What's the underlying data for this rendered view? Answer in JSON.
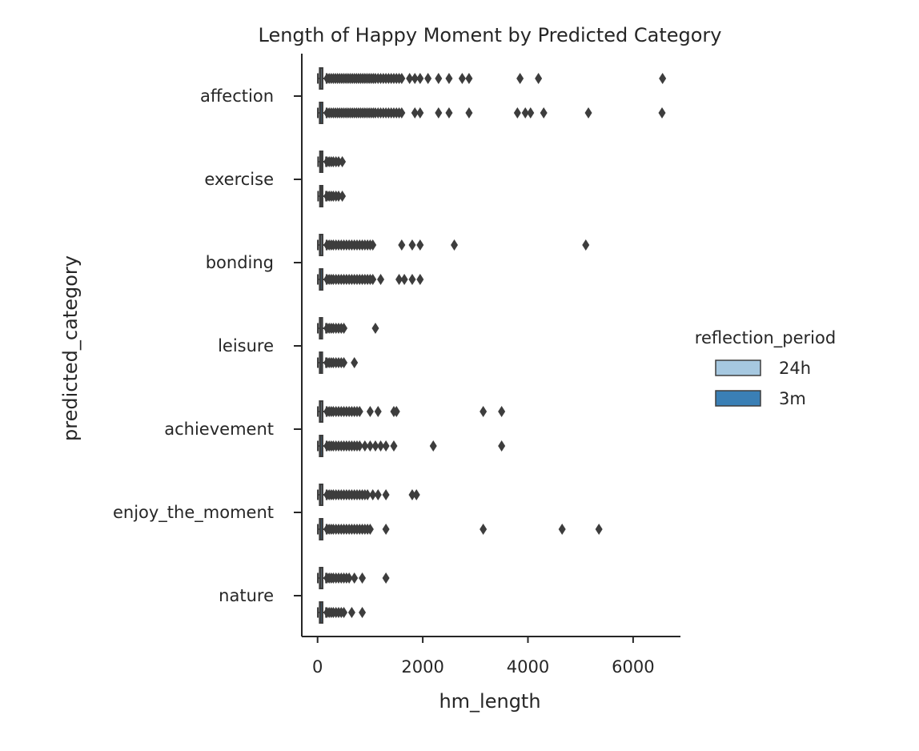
{
  "chart_data": {
    "type": "boxplot",
    "orientation": "horizontal",
    "title": "Length of Happy Moment by Predicted Category",
    "xlabel": "hm_length",
    "ylabel": "predicted_category",
    "xlim": [
      -300,
      6900
    ],
    "xticks": [
      0,
      2000,
      4000,
      6000
    ],
    "grid": false,
    "categories": [
      "affection",
      "exercise",
      "bonding",
      "leisure",
      "achievement",
      "enjoy_the_moment",
      "nature"
    ],
    "legend": {
      "title": "reflection_period",
      "placement": "center-right",
      "entries": [
        {
          "label": "24h",
          "color": "#a6c8e0"
        },
        {
          "label": "3m",
          "color": "#3a7fb5"
        }
      ]
    },
    "series": [
      {
        "name": "24h",
        "color": "#a6c8e0",
        "boxes": [
          {
            "category": "affection",
            "q1": 40,
            "median": 60,
            "q3": 95,
            "whisker_low": 5,
            "whisker_high": 170,
            "outliers": [
              180,
              220,
              260,
              300,
              340,
              380,
              420,
              460,
              500,
              540,
              580,
              620,
              660,
              700,
              740,
              780,
              820,
              860,
              900,
              940,
              980,
              1020,
              1060,
              1100,
              1150,
              1200,
              1250,
              1300,
              1350,
              1400,
              1450,
              1500,
              1550,
              1600,
              1750,
              1850,
              1950,
              2100,
              2300,
              2500,
              2750,
              2880,
              3850,
              4200,
              6560
            ]
          },
          {
            "category": "exercise",
            "q1": 45,
            "median": 65,
            "q3": 95,
            "whisker_low": 10,
            "whisker_high": 160,
            "outliers": [
              180,
              220,
              260,
              300,
              350,
              400,
              470
            ]
          },
          {
            "category": "bonding",
            "q1": 40,
            "median": 60,
            "q3": 95,
            "whisker_low": 5,
            "whisker_high": 170,
            "outliers": [
              180,
              220,
              260,
              300,
              350,
              400,
              450,
              500,
              550,
              600,
              650,
              700,
              750,
              800,
              850,
              900,
              950,
              1000,
              1050,
              1600,
              1800,
              1950,
              2600,
              5100
            ]
          },
          {
            "category": "leisure",
            "q1": 40,
            "median": 60,
            "q3": 90,
            "whisker_low": 5,
            "whisker_high": 160,
            "outliers": [
              180,
              220,
              260,
              300,
              350,
              400,
              450,
              500,
              1100
            ]
          },
          {
            "category": "achievement",
            "q1": 40,
            "median": 60,
            "q3": 95,
            "whisker_low": 5,
            "whisker_high": 170,
            "outliers": [
              180,
              220,
              260,
              300,
              350,
              400,
              450,
              500,
              550,
              600,
              650,
              700,
              750,
              800,
              1000,
              1150,
              1450,
              1500,
              3150,
              3500
            ]
          },
          {
            "category": "enjoy_the_moment",
            "q1": 40,
            "median": 60,
            "q3": 95,
            "whisker_low": 5,
            "whisker_high": 170,
            "outliers": [
              180,
              220,
              260,
              300,
              350,
              400,
              450,
              500,
              550,
              600,
              650,
              700,
              750,
              800,
              850,
              900,
              950,
              1050,
              1150,
              1300,
              1800,
              1880
            ]
          },
          {
            "category": "nature",
            "q1": 40,
            "median": 60,
            "q3": 95,
            "whisker_low": 5,
            "whisker_high": 160,
            "outliers": [
              180,
              220,
              260,
              300,
              350,
              400,
              450,
              500,
              550,
              600,
              700,
              850,
              1300
            ]
          }
        ]
      },
      {
        "name": "3m",
        "color": "#3a7fb5",
        "boxes": [
          {
            "category": "affection",
            "q1": 40,
            "median": 60,
            "q3": 95,
            "whisker_low": 5,
            "whisker_high": 170,
            "outliers": [
              180,
              220,
              260,
              300,
              340,
              380,
              420,
              460,
              500,
              540,
              580,
              620,
              660,
              700,
              740,
              780,
              820,
              860,
              900,
              940,
              980,
              1020,
              1060,
              1100,
              1150,
              1200,
              1250,
              1300,
              1350,
              1400,
              1450,
              1500,
              1550,
              1600,
              1850,
              1950,
              2300,
              2500,
              2880,
              3800,
              3950,
              4050,
              4300,
              5150,
              6550
            ]
          },
          {
            "category": "exercise",
            "q1": 45,
            "median": 65,
            "q3": 95,
            "whisker_low": 10,
            "whisker_high": 160,
            "outliers": [
              180,
              220,
              260,
              300,
              350,
              400,
              470
            ]
          },
          {
            "category": "bonding",
            "q1": 40,
            "median": 60,
            "q3": 95,
            "whisker_low": 5,
            "whisker_high": 170,
            "outliers": [
              180,
              220,
              260,
              300,
              350,
              400,
              450,
              500,
              550,
              600,
              650,
              700,
              750,
              800,
              850,
              900,
              950,
              1000,
              1050,
              1200,
              1550,
              1650,
              1800,
              1950
            ]
          },
          {
            "category": "leisure",
            "q1": 40,
            "median": 60,
            "q3": 90,
            "whisker_low": 5,
            "whisker_high": 160,
            "outliers": [
              180,
              220,
              260,
              300,
              350,
              400,
              450,
              500,
              700
            ]
          },
          {
            "category": "achievement",
            "q1": 40,
            "median": 60,
            "q3": 95,
            "whisker_low": 5,
            "whisker_high": 170,
            "outliers": [
              180,
              220,
              260,
              300,
              350,
              400,
              450,
              500,
              550,
              600,
              650,
              700,
              750,
              800,
              900,
              1000,
              1100,
              1200,
              1300,
              1450,
              2200,
              3500
            ]
          },
          {
            "category": "enjoy_the_moment",
            "q1": 40,
            "median": 60,
            "q3": 95,
            "whisker_low": 5,
            "whisker_high": 170,
            "outliers": [
              180,
              220,
              260,
              300,
              350,
              400,
              450,
              500,
              550,
              600,
              650,
              700,
              750,
              800,
              850,
              900,
              950,
              1000,
              1300,
              3150,
              4650,
              5350
            ]
          },
          {
            "category": "nature",
            "q1": 40,
            "median": 60,
            "q3": 95,
            "whisker_low": 5,
            "whisker_high": 160,
            "outliers": [
              180,
              220,
              260,
              300,
              350,
              400,
              450,
              500,
              650,
              850
            ]
          }
        ]
      }
    ]
  }
}
